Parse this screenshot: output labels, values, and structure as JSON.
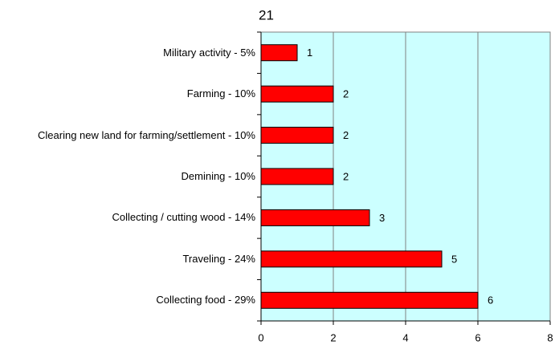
{
  "chart_data": {
    "type": "bar",
    "orientation": "horizontal",
    "title": "21",
    "categories": [
      "Military activity - 5%",
      "Farming - 10%",
      "Clearing new land for farming/settlement - 10%",
      "Demining - 10%",
      "Collecting / cutting wood - 14%",
      "Traveling - 24%",
      "Collecting food - 29%"
    ],
    "values": [
      1,
      2,
      2,
      2,
      3,
      5,
      6
    ],
    "color": "#ff0000",
    "background": "#ccffff",
    "xlim": [
      0,
      8
    ],
    "xticks": [
      0,
      2,
      4,
      6,
      8
    ],
    "grid": true
  }
}
